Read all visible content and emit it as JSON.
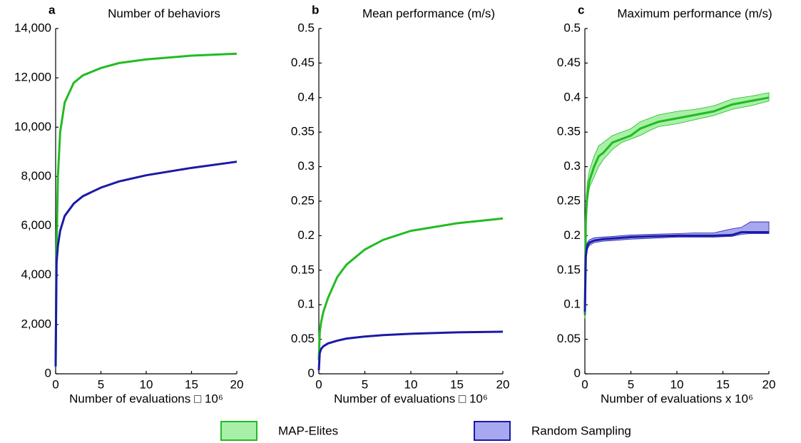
{
  "chart_data": [
    {
      "type": "line",
      "label": "a",
      "title": "Number of behaviors",
      "xlabel": "Number of evaluations □ 10⁶",
      "x": [
        0,
        0.1,
        0.25,
        0.5,
        1,
        2,
        3,
        5,
        7,
        10,
        15,
        20
      ],
      "series": [
        {
          "color": "#22bb22",
          "values": [
            300,
            5000,
            8000,
            9800,
            11000,
            11800,
            12100,
            12400,
            12600,
            12750,
            12900,
            12980
          ]
        },
        {
          "color": "#1a1aa6",
          "values": [
            300,
            4500,
            5200,
            5800,
            6400,
            6900,
            7200,
            7550,
            7800,
            8050,
            8350,
            8600
          ]
        }
      ],
      "xlim": [
        0,
        20
      ],
      "xticks": [
        0,
        5,
        10,
        15,
        20
      ],
      "ylim": [
        0,
        14000
      ],
      "yticks": [
        0,
        {
          "value": 2000,
          "label": "2,000"
        },
        {
          "value": 4000,
          "label": "4,000"
        },
        {
          "value": 6000,
          "label": "6,000"
        },
        {
          "value": 8000,
          "label": "8,000"
        },
        {
          "value": 10000,
          "label": "10,000"
        },
        {
          "value": 12000,
          "label": "12,000"
        },
        {
          "value": 14000,
          "label": "14,000"
        }
      ]
    },
    {
      "type": "line",
      "label": "b",
      "title": "Mean performance (m/s)",
      "xlabel": "Number of evaluations □ 10⁶",
      "x": [
        0,
        0.1,
        0.25,
        0.5,
        1,
        2,
        3,
        5,
        7,
        10,
        15,
        20
      ],
      "series": [
        {
          "color": "#22bb22",
          "values": [
            0.02,
            0.06,
            0.075,
            0.09,
            0.11,
            0.14,
            0.158,
            0.18,
            0.194,
            0.207,
            0.218,
            0.225
          ]
        },
        {
          "color": "#1a1aa6",
          "values": [
            0.005,
            0.03,
            0.036,
            0.04,
            0.044,
            0.048,
            0.051,
            0.054,
            0.056,
            0.058,
            0.06,
            0.061
          ]
        }
      ],
      "xlim": [
        0,
        20
      ],
      "xticks": [
        0,
        5,
        10,
        15,
        20
      ],
      "ylim": [
        0,
        0.5
      ],
      "yticks": [
        0,
        0.05,
        0.1,
        0.15,
        0.2,
        0.25,
        0.3,
        0.35,
        0.4,
        0.45,
        0.5
      ]
    },
    {
      "type": "band",
      "label": "c",
      "title": "Maximum performance (m/s)",
      "xlabel": "Number of evaluations x 10⁶",
      "series": [
        {
          "name": "MAP-Elites",
          "color": "#22bb22",
          "band_color": "#a8f0a8",
          "x": [
            0,
            0.1,
            0.25,
            0.5,
            1,
            1.5,
            2,
            3,
            4,
            5,
            6,
            7,
            8,
            10,
            12,
            14,
            16,
            18,
            20
          ],
          "values": [
            0.085,
            0.22,
            0.26,
            0.28,
            0.3,
            0.315,
            0.32,
            0.335,
            0.34,
            0.345,
            0.355,
            0.36,
            0.365,
            0.37,
            0.375,
            0.38,
            0.39,
            0.395,
            0.4
          ],
          "lower": [
            0.08,
            0.2,
            0.245,
            0.27,
            0.285,
            0.3,
            0.31,
            0.325,
            0.335,
            0.34,
            0.345,
            0.352,
            0.358,
            0.362,
            0.368,
            0.374,
            0.383,
            0.388,
            0.395
          ],
          "upper": [
            0.09,
            0.24,
            0.275,
            0.295,
            0.315,
            0.33,
            0.335,
            0.345,
            0.35,
            0.355,
            0.365,
            0.37,
            0.375,
            0.38,
            0.383,
            0.388,
            0.398,
            0.402,
            0.407
          ]
        },
        {
          "name": "Random Sampling",
          "color": "#1a1aa6",
          "band_color": "#a8a8f0",
          "x": [
            0,
            0.1,
            0.25,
            0.5,
            1,
            2,
            3,
            5,
            7,
            10,
            12,
            14,
            16,
            17,
            18,
            20
          ],
          "values": [
            0.09,
            0.17,
            0.185,
            0.19,
            0.193,
            0.195,
            0.196,
            0.198,
            0.199,
            0.2,
            0.2,
            0.2,
            0.201,
            0.205,
            0.205,
            0.205
          ],
          "lower": [
            0.085,
            0.16,
            0.18,
            0.186,
            0.19,
            0.192,
            0.193,
            0.195,
            0.196,
            0.198,
            0.198,
            0.198,
            0.199,
            0.202,
            0.203,
            0.203
          ],
          "upper": [
            0.095,
            0.18,
            0.19,
            0.194,
            0.197,
            0.198,
            0.199,
            0.201,
            0.202,
            0.203,
            0.204,
            0.204,
            0.21,
            0.212,
            0.22,
            0.22
          ]
        }
      ],
      "xlim": [
        0,
        20
      ],
      "xticks": [
        0,
        5,
        10,
        15,
        20
      ],
      "ylim": [
        0,
        0.5
      ],
      "yticks": [
        0,
        0.05,
        0.1,
        0.15,
        0.2,
        0.25,
        0.3,
        0.35,
        0.4,
        0.45,
        0.5
      ]
    }
  ]
}
